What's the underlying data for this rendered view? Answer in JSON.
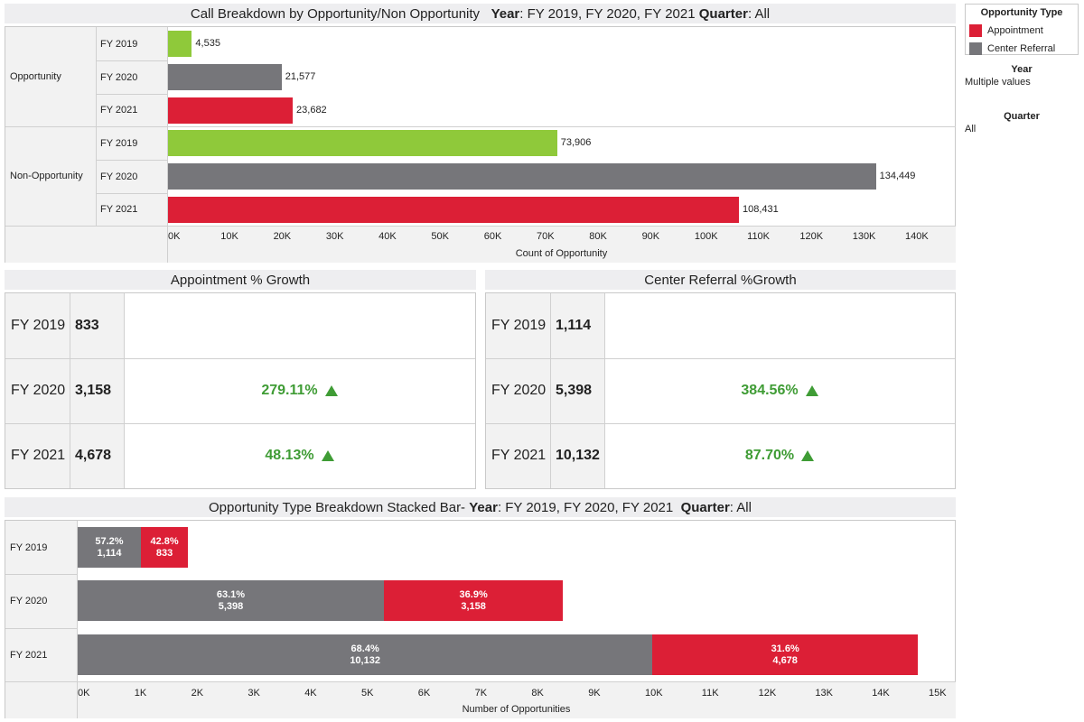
{
  "colors": {
    "appointment": "#dc1f36",
    "center_referral": "#76767a",
    "fy2019_bar": "#8fc93a",
    "growth": "#3f9c35"
  },
  "top_chart": {
    "title_main": "Call Breakdown by Opportunity/Non Opportunity",
    "title_year_label": "Year",
    "title_year_value": ": FY 2019, FY 2020, FY 2021",
    "title_quarter_label": "Quarter",
    "title_quarter_value": ": All",
    "groups": [
      {
        "name": "Opportunity",
        "rows": [
          {
            "year": "FY 2019",
            "value": 4535,
            "label": "4,535"
          },
          {
            "year": "FY 2020",
            "value": 21577,
            "label": "21,577"
          },
          {
            "year": "FY 2021",
            "value": 23682,
            "label": "23,682"
          }
        ]
      },
      {
        "name": "Non-Opportunity",
        "rows": [
          {
            "year": "FY 2019",
            "value": 73906,
            "label": "73,906"
          },
          {
            "year": "FY 2020",
            "value": 134449,
            "label": "134,449"
          },
          {
            "year": "FY 2021",
            "value": 108431,
            "label": "108,431"
          }
        ]
      }
    ],
    "ticks": [
      "0K",
      "10K",
      "20K",
      "30K",
      "40K",
      "50K",
      "60K",
      "70K",
      "80K",
      "90K",
      "100K",
      "110K",
      "120K",
      "130K",
      "140K"
    ],
    "xlabel": "Count of Opportunity"
  },
  "appointment_growth": {
    "title": "Appointment % Growth",
    "rows": [
      {
        "year": "FY 2019",
        "value": "833",
        "pct": ""
      },
      {
        "year": "FY 2020",
        "value": "3,158",
        "pct": "279.11%"
      },
      {
        "year": "FY 2021",
        "value": "4,678",
        "pct": "48.13%"
      }
    ]
  },
  "referral_growth": {
    "title": "Center Referral %Growth",
    "rows": [
      {
        "year": "FY 2019",
        "value": "1,114",
        "pct": ""
      },
      {
        "year": "FY 2020",
        "value": "5,398",
        "pct": "384.56%"
      },
      {
        "year": "FY 2021",
        "value": "10,132",
        "pct": "87.70%"
      }
    ]
  },
  "stacked_chart": {
    "title_main": "Opportunity Type Breakdown Stacked Bar-",
    "title_year_label": "Year",
    "title_year_value": ": FY 2019, FY 2020, FY 2021",
    "title_quarter_label": "Quarter",
    "title_quarter_value": ": All",
    "rows": [
      {
        "year": "FY 2019",
        "referral": 1114,
        "referral_pct": "57.2%",
        "referral_label": "1,114",
        "appointment": 833,
        "appointment_pct": "42.8%",
        "appointment_label": "833"
      },
      {
        "year": "FY 2020",
        "referral": 5398,
        "referral_pct": "63.1%",
        "referral_label": "5,398",
        "appointment": 3158,
        "appointment_pct": "36.9%",
        "appointment_label": "3,158"
      },
      {
        "year": "FY 2021",
        "referral": 10132,
        "referral_pct": "68.4%",
        "referral_label": "10,132",
        "appointment": 4678,
        "appointment_pct": "31.6%",
        "appointment_label": "4,678"
      }
    ],
    "ticks": [
      "0K",
      "1K",
      "2K",
      "3K",
      "4K",
      "5K",
      "6K",
      "7K",
      "8K",
      "9K",
      "10K",
      "11K",
      "12K",
      "13K",
      "14K",
      "15K"
    ],
    "xlabel": "Number of Opportunities"
  },
  "legend": {
    "title": "Opportunity Type",
    "items": [
      {
        "label": "Appointment",
        "color": "#dc1f36"
      },
      {
        "label": "Center Referral",
        "color": "#76767a"
      }
    ]
  },
  "filters": {
    "year_title": "Year",
    "year_value": "Multiple values",
    "quarter_title": "Quarter",
    "quarter_value": "All"
  },
  "chart_data": [
    {
      "type": "bar",
      "title": "Call Breakdown by Opportunity/Non Opportunity",
      "categories": [
        "Opportunity FY 2019",
        "Opportunity FY 2020",
        "Opportunity FY 2021",
        "Non-Opportunity FY 2019",
        "Non-Opportunity FY 2020",
        "Non-Opportunity FY 2021"
      ],
      "values": [
        4535,
        21577,
        23682,
        73906,
        134449,
        108431
      ],
      "xlabel": "Count of Opportunity",
      "xlim": [
        0,
        140000
      ],
      "orientation": "horizontal"
    },
    {
      "type": "table",
      "title": "Appointment % Growth",
      "categories": [
        "FY 2019",
        "FY 2020",
        "FY 2021"
      ],
      "values": [
        833,
        3158,
        4678
      ],
      "growth": [
        "",
        "279.11%",
        "48.13%"
      ]
    },
    {
      "type": "table",
      "title": "Center Referral %Growth",
      "categories": [
        "FY 2019",
        "FY 2020",
        "FY 2021"
      ],
      "values": [
        1114,
        5398,
        10132
      ],
      "growth": [
        "",
        "384.56%",
        "87.70%"
      ]
    },
    {
      "type": "bar",
      "stacked": true,
      "orientation": "horizontal",
      "title": "Opportunity Type Breakdown Stacked Bar-",
      "categories": [
        "FY 2019",
        "FY 2020",
        "FY 2021"
      ],
      "series": [
        {
          "name": "Center Referral",
          "values": [
            1114,
            5398,
            10132
          ],
          "percent": [
            57.2,
            63.1,
            68.4
          ]
        },
        {
          "name": "Appointment",
          "values": [
            833,
            3158,
            4678
          ],
          "percent": [
            42.8,
            36.9,
            31.6
          ]
        }
      ],
      "xlabel": "Number of Opportunities",
      "xlim": [
        0,
        15000
      ],
      "legend": "top-right"
    }
  ]
}
